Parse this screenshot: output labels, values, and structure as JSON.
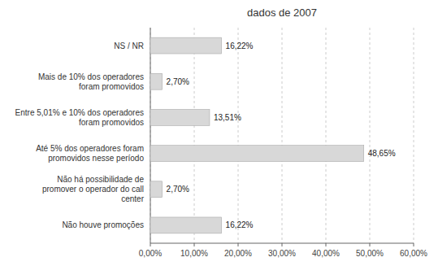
{
  "chart_data": {
    "type": "bar",
    "orientation": "horizontal",
    "title": "dados de 2007",
    "categories": [
      "NS / NR",
      "Mais de 10% dos operadores\nforam promovidos",
      "Entre 5,01% e 10% dos operadores\nforam promovidos",
      "Até 5% dos operadores foram\npromovidos nesse período",
      "Não há possibilidade de\npromover o operador do call\ncenter",
      "Não houve promoções"
    ],
    "values": [
      16.22,
      2.7,
      13.51,
      48.65,
      2.7,
      16.22
    ],
    "value_labels": [
      "16,22%",
      "2,70%",
      "13,51%",
      "48,65%",
      "2,70%",
      "16,22%"
    ],
    "data_labels": true,
    "color": "#d8d8d8",
    "xlim": [
      0,
      60
    ],
    "xticks": [
      {
        "value": 0,
        "label": "0,00%"
      },
      {
        "value": 10,
        "label": "10,00%"
      },
      {
        "value": 20,
        "label": "20,00%"
      },
      {
        "value": 30,
        "label": "30,00%"
      },
      {
        "value": 40,
        "label": "40,00%"
      },
      {
        "value": 50,
        "label": "50,00%"
      },
      {
        "value": 60,
        "label": "60,00%"
      }
    ],
    "grid": true
  }
}
